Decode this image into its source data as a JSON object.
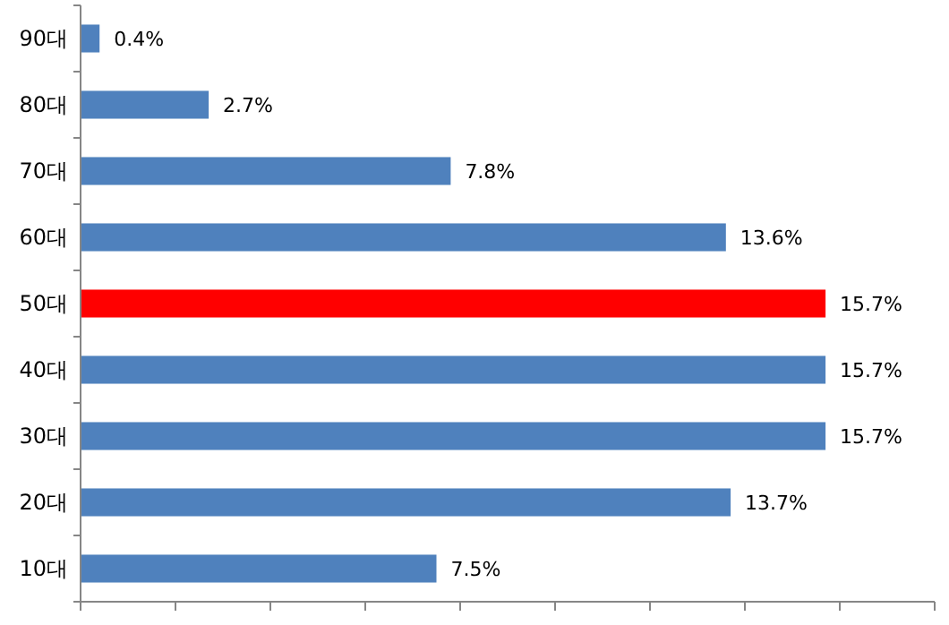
{
  "chart_data": {
    "type": "bar",
    "orientation": "horizontal",
    "categories": [
      "90대",
      "80대",
      "70대",
      "60대",
      "50대",
      "40대",
      "30대",
      "20대",
      "10대"
    ],
    "values": [
      0.4,
      2.7,
      7.8,
      13.6,
      15.7,
      15.7,
      15.7,
      13.7,
      7.5
    ],
    "colors": [
      "#4f81bd",
      "#4f81bd",
      "#4f81bd",
      "#4f81bd",
      "#ff0000",
      "#4f81bd",
      "#4f81bd",
      "#4f81bd",
      "#4f81bd"
    ],
    "value_labels": [
      "0.4%",
      "2.7%",
      "7.8%",
      "13.6%",
      "15.7%",
      "15.7%",
      "15.7%",
      "13.7%",
      "7.5%"
    ],
    "xlim": [
      0,
      18
    ],
    "xticks": [
      {
        "value": 0,
        "label": null
      },
      {
        "value": 2,
        "label": null
      },
      {
        "value": 4,
        "label": null
      },
      {
        "value": 6,
        "label": null
      },
      {
        "value": 8,
        "label": null
      },
      {
        "value": 10,
        "label": null
      },
      {
        "value": 12,
        "label": null
      },
      {
        "value": 14,
        "label": null
      },
      {
        "value": 16,
        "label": null
      },
      {
        "value": 18,
        "label": null
      }
    ]
  }
}
